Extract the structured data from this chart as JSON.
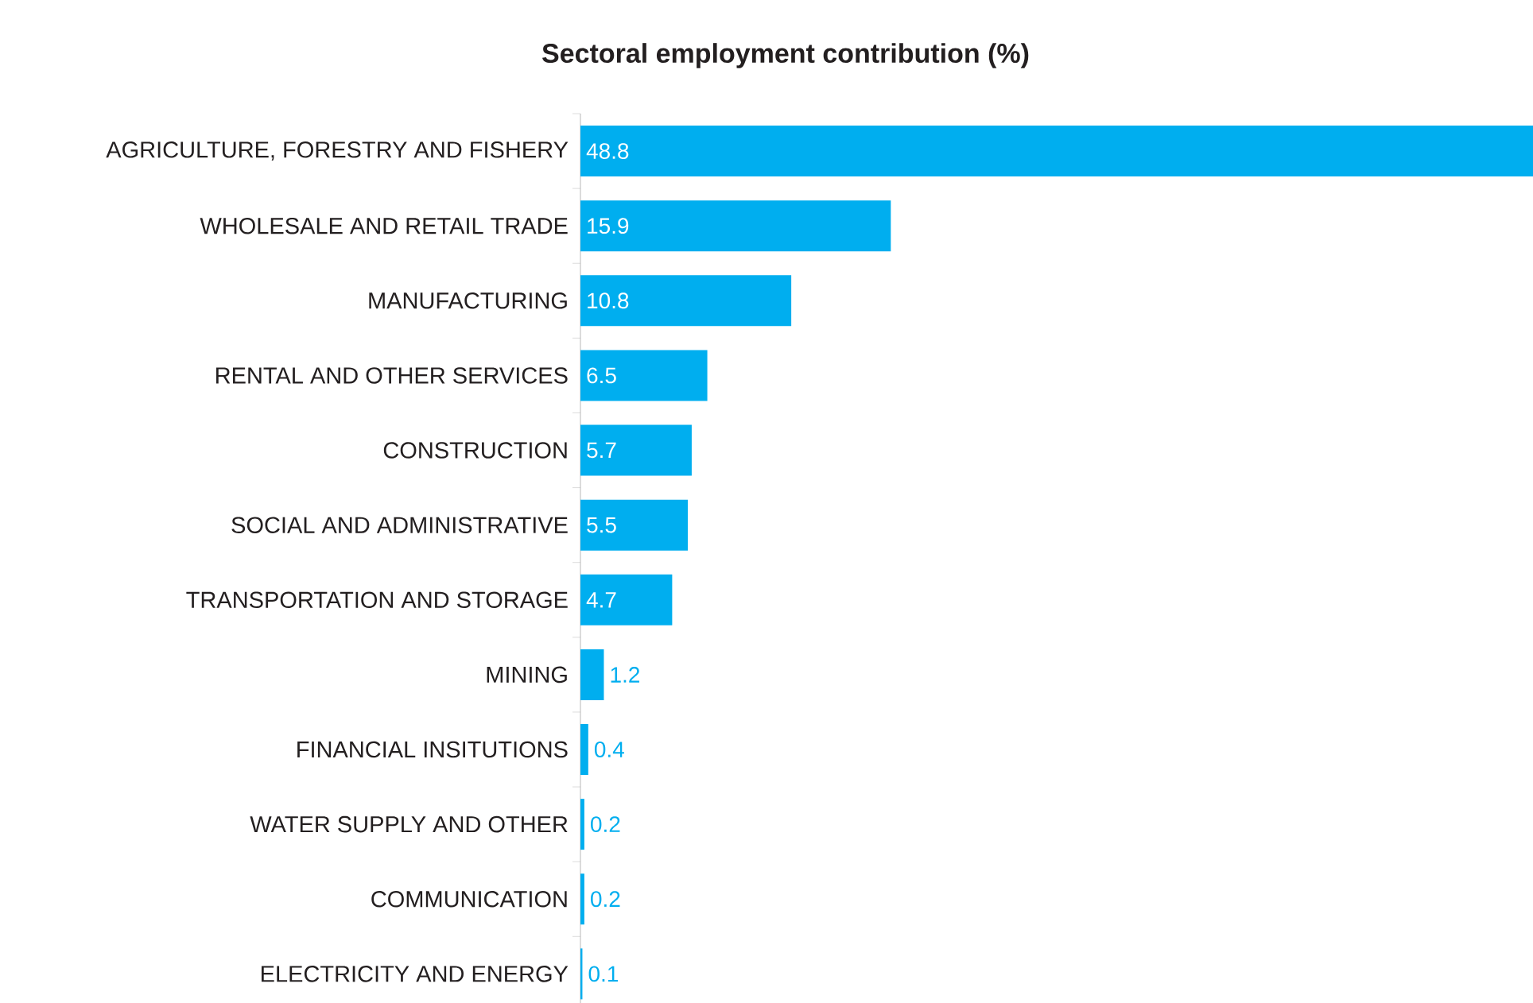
{
  "chart_data": {
    "type": "bar",
    "orientation": "horizontal",
    "title": "Sectoral employment contribution (%)",
    "categories": [
      "AGRICULTURE, FORESTRY AND FISHERY",
      "WHOLESALE AND RETAIL TRADE",
      "MANUFACTURING",
      "RENTAL AND OTHER SERVICES",
      "CONSTRUCTION",
      "SOCIAL AND ADMINISTRATIVE",
      "TRANSPORTATION AND STORAGE",
      "MINING",
      "FINANCIAL INSITUTIONS",
      "WATER SUPPLY AND OTHER",
      "COMMUNICATION",
      "ELECTRICITY AND ENERGY"
    ],
    "values": [
      48.8,
      15.9,
      10.8,
      6.5,
      5.7,
      5.5,
      4.7,
      1.2,
      0.4,
      0.2,
      0.2,
      0.1
    ],
    "color": "#00aeef",
    "data_labels": true
  }
}
